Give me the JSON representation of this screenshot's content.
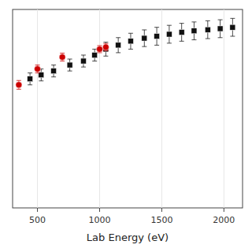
{
  "chart_data": {
    "type": "scatter",
    "xlabel": "Lab Energy (eV)",
    "xlim": [
      300,
      2150
    ],
    "ylim": [
      0,
      1
    ],
    "xticks": [
      500,
      1000,
      1500,
      2000
    ],
    "tick_labels": "x",
    "series": [
      {
        "color": "#cc0000",
        "marker": "circle",
        "x": [
          350,
          500,
          700,
          1000,
          1050
        ],
        "values": [
          0.62,
          0.7,
          0.76,
          0.8,
          0.81
        ],
        "errors": [
          0.022,
          0.02,
          0.02,
          0.018,
          0.018
        ]
      },
      {
        "color": "#111111",
        "marker": "square",
        "x": [
          440,
          530,
          630,
          760,
          870,
          960,
          1050,
          1150,
          1250,
          1360,
          1460,
          1560,
          1660,
          1760,
          1870,
          1970,
          2070
        ],
        "values": [
          0.65,
          0.67,
          0.69,
          0.72,
          0.74,
          0.77,
          0.8,
          0.82,
          0.84,
          0.855,
          0.865,
          0.875,
          0.885,
          0.892,
          0.898,
          0.903,
          0.91
        ],
        "errors": [
          0.03,
          0.03,
          0.03,
          0.03,
          0.03,
          0.03,
          0.035,
          0.038,
          0.04,
          0.042,
          0.045,
          0.045,
          0.045,
          0.045,
          0.045,
          0.045,
          0.045
        ]
      }
    ]
  }
}
